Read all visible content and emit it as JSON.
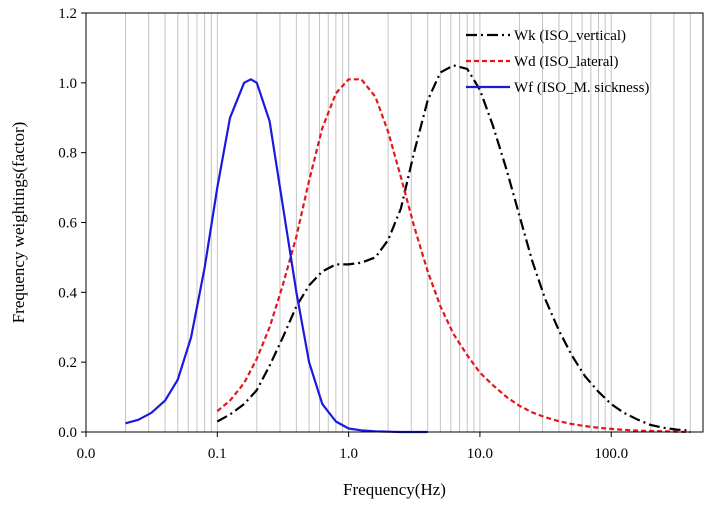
{
  "chart_data": {
    "type": "line",
    "title": "",
    "xlabel": "Frequency(Hz)",
    "ylabel": "Frequency weightings(factor)",
    "x_scale": "log",
    "xlim": [
      0.01,
      500
    ],
    "ylim": [
      0,
      1.2
    ],
    "x_ticks": [
      {
        "value": 0.01,
        "label": "0.0"
      },
      {
        "value": 0.1,
        "label": "0.1"
      },
      {
        "value": 1,
        "label": "1.0"
      },
      {
        "value": 10,
        "label": "10.0"
      },
      {
        "value": 100,
        "label": "100.0"
      }
    ],
    "y_ticks": [
      {
        "value": 0.0,
        "label": "0.0"
      },
      {
        "value": 0.2,
        "label": "0.2"
      },
      {
        "value": 0.4,
        "label": "0.4"
      },
      {
        "value": 0.6,
        "label": "0.6"
      },
      {
        "value": 0.8,
        "label": "0.8"
      },
      {
        "value": 1.0,
        "label": "1.0"
      },
      {
        "value": 1.2,
        "label": "1.2"
      }
    ],
    "grid": {
      "vertical_minor": true,
      "horizontal": false
    },
    "legend": {
      "position": "top-right",
      "border": false
    },
    "series": [
      {
        "name": "Wk (ISO_vertical)",
        "color": "#000000",
        "style": "dashdot",
        "points": [
          [
            0.1,
            0.03
          ],
          [
            0.125,
            0.05
          ],
          [
            0.16,
            0.08
          ],
          [
            0.2,
            0.12
          ],
          [
            0.25,
            0.19
          ],
          [
            0.315,
            0.27
          ],
          [
            0.4,
            0.36
          ],
          [
            0.5,
            0.42
          ],
          [
            0.63,
            0.46
          ],
          [
            0.8,
            0.48
          ],
          [
            1.0,
            0.48
          ],
          [
            1.25,
            0.485
          ],
          [
            1.6,
            0.5
          ],
          [
            2.0,
            0.55
          ],
          [
            2.5,
            0.64
          ],
          [
            3.15,
            0.8
          ],
          [
            4.0,
            0.95
          ],
          [
            5.0,
            1.03
          ],
          [
            6.3,
            1.05
          ],
          [
            8.0,
            1.04
          ],
          [
            10.0,
            0.98
          ],
          [
            12.5,
            0.88
          ],
          [
            16.0,
            0.75
          ],
          [
            20.0,
            0.62
          ],
          [
            25.0,
            0.49
          ],
          [
            31.5,
            0.38
          ],
          [
            40.0,
            0.29
          ],
          [
            50.0,
            0.22
          ],
          [
            63.0,
            0.16
          ],
          [
            80.0,
            0.115
          ],
          [
            100.0,
            0.08
          ],
          [
            125.0,
            0.055
          ],
          [
            160.0,
            0.035
          ],
          [
            200.0,
            0.02
          ],
          [
            250.0,
            0.012
          ],
          [
            315.0,
            0.007
          ],
          [
            400.0,
            0.004
          ]
        ]
      },
      {
        "name": "Wd (ISO_lateral)",
        "color": "#e8141c",
        "style": "dashed",
        "points": [
          [
            0.1,
            0.06
          ],
          [
            0.125,
            0.09
          ],
          [
            0.16,
            0.14
          ],
          [
            0.2,
            0.21
          ],
          [
            0.25,
            0.3
          ],
          [
            0.315,
            0.42
          ],
          [
            0.4,
            0.56
          ],
          [
            0.5,
            0.72
          ],
          [
            0.63,
            0.87
          ],
          [
            0.8,
            0.97
          ],
          [
            1.0,
            1.01
          ],
          [
            1.25,
            1.01
          ],
          [
            1.6,
            0.96
          ],
          [
            2.0,
            0.86
          ],
          [
            2.5,
            0.73
          ],
          [
            3.15,
            0.59
          ],
          [
            4.0,
            0.46
          ],
          [
            5.0,
            0.36
          ],
          [
            6.3,
            0.28
          ],
          [
            8.0,
            0.22
          ],
          [
            10.0,
            0.17
          ],
          [
            12.5,
            0.135
          ],
          [
            16.0,
            0.1
          ],
          [
            20.0,
            0.075
          ],
          [
            25.0,
            0.056
          ],
          [
            31.5,
            0.042
          ],
          [
            40.0,
            0.031
          ],
          [
            50.0,
            0.023
          ],
          [
            63.0,
            0.017
          ],
          [
            80.0,
            0.012
          ],
          [
            100.0,
            0.009
          ],
          [
            125.0,
            0.006
          ],
          [
            160.0,
            0.004
          ],
          [
            200.0,
            0.003
          ],
          [
            250.0,
            0.002
          ],
          [
            315.0,
            0.001
          ],
          [
            400.0,
            0.0
          ]
        ]
      },
      {
        "name": "Wf (ISO_M. sickness)",
        "color": "#1a1adf",
        "style": "solid",
        "points": [
          [
            0.02,
            0.025
          ],
          [
            0.025,
            0.035
          ],
          [
            0.0315,
            0.055
          ],
          [
            0.04,
            0.09
          ],
          [
            0.05,
            0.15
          ],
          [
            0.063,
            0.27
          ],
          [
            0.08,
            0.47
          ],
          [
            0.1,
            0.7
          ],
          [
            0.125,
            0.9
          ],
          [
            0.16,
            1.0
          ],
          [
            0.18,
            1.01
          ],
          [
            0.2,
            1.0
          ],
          [
            0.25,
            0.89
          ],
          [
            0.315,
            0.65
          ],
          [
            0.4,
            0.4
          ],
          [
            0.5,
            0.2
          ],
          [
            0.63,
            0.08
          ],
          [
            0.8,
            0.03
          ],
          [
            1.0,
            0.01
          ],
          [
            1.25,
            0.005
          ],
          [
            1.6,
            0.002
          ],
          [
            2.0,
            0.001
          ],
          [
            2.5,
            0.0
          ],
          [
            3.15,
            0.0
          ],
          [
            4.0,
            0.0
          ]
        ]
      }
    ]
  }
}
